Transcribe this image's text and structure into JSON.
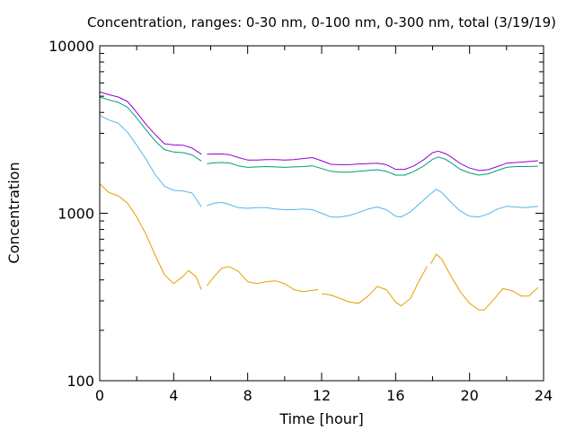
{
  "chart_data": {
    "type": "line",
    "title": "Concentration, ranges: 0-30 nm, 0-100 nm, 0-300 nm, total (3/19/19)",
    "xlabel": "Time [hour]",
    "ylabel": "Concentration",
    "xlim": [
      0,
      24
    ],
    "ylim": [
      100,
      10000
    ],
    "yscale": "log",
    "grid": false,
    "legend": "none",
    "x_ticks": [
      0,
      4,
      8,
      12,
      16,
      20,
      24
    ],
    "x_tick_labels": [
      "0",
      "4",
      "8",
      "12",
      "16",
      "20",
      "24"
    ],
    "y_ticks": [
      100,
      1000,
      10000
    ],
    "y_tick_labels": [
      "100",
      "1000",
      "10000"
    ],
    "series": [
      {
        "color": "#e69f00",
        "segments": [
          [
            [
              0,
              1500
            ],
            [
              0.5,
              1330
            ],
            [
              1,
              1270
            ],
            [
              1.5,
              1150
            ],
            [
              2,
              950
            ],
            [
              2.5,
              750
            ],
            [
              3,
              560
            ],
            [
              3.5,
              430
            ],
            [
              4,
              380
            ],
            [
              4.5,
              420
            ],
            [
              4.8,
              455
            ],
            [
              5.2,
              420
            ],
            [
              5.5,
              350
            ]
          ],
          [
            [
              5.8,
              370
            ],
            [
              6.2,
              420
            ],
            [
              6.6,
              470
            ],
            [
              7,
              480
            ],
            [
              7.5,
              450
            ],
            [
              8,
              390
            ],
            [
              8.5,
              380
            ],
            [
              9,
              390
            ],
            [
              9.5,
              395
            ],
            [
              10,
              380
            ],
            [
              10.5,
              350
            ],
            [
              11,
              340
            ],
            [
              11.8,
              350
            ]
          ],
          [
            [
              12,
              330
            ],
            [
              12.5,
              325
            ],
            [
              13,
              310
            ],
            [
              13.5,
              295
            ],
            [
              14,
              290
            ],
            [
              14.5,
              320
            ],
            [
              15,
              365
            ],
            [
              15.5,
              350
            ],
            [
              16,
              295
            ],
            [
              16.3,
              280
            ],
            [
              16.8,
              310
            ],
            [
              17.3,
              400
            ],
            [
              17.7,
              480
            ]
          ],
          [
            [
              17.9,
              500
            ],
            [
              18.2,
              570
            ],
            [
              18.5,
              530
            ],
            [
              19,
              420
            ],
            [
              19.5,
              340
            ],
            [
              20,
              290
            ],
            [
              20.5,
              265
            ],
            [
              20.8,
              265
            ],
            [
              21.3,
              305
            ],
            [
              21.8,
              355
            ],
            [
              22.3,
              345
            ],
            [
              22.8,
              320
            ],
            [
              23.2,
              320
            ],
            [
              23.7,
              360
            ]
          ]
        ]
      },
      {
        "color": "#56b4e9",
        "segments": [
          [
            [
              0,
              3850
            ],
            [
              0.5,
              3600
            ],
            [
              1,
              3450
            ],
            [
              1.5,
              3050
            ],
            [
              2,
              2550
            ],
            [
              2.5,
              2100
            ],
            [
              3,
              1700
            ],
            [
              3.5,
              1450
            ],
            [
              4,
              1370
            ],
            [
              4.5,
              1360
            ],
            [
              5,
              1320
            ],
            [
              5.5,
              1090
            ]
          ],
          [
            [
              5.8,
              1110
            ],
            [
              6.2,
              1150
            ],
            [
              6.6,
              1160
            ],
            [
              7,
              1130
            ],
            [
              7.5,
              1080
            ],
            [
              8,
              1070
            ],
            [
              8.5,
              1080
            ],
            [
              9,
              1080
            ],
            [
              9.5,
              1060
            ],
            [
              10,
              1050
            ],
            [
              10.5,
              1050
            ],
            [
              11,
              1060
            ],
            [
              11.5,
              1050
            ],
            [
              12,
              1000
            ],
            [
              12.5,
              950
            ],
            [
              13,
              950
            ],
            [
              13.5,
              970
            ],
            [
              14,
              1010
            ],
            [
              14.5,
              1060
            ],
            [
              15,
              1090
            ],
            [
              15.5,
              1050
            ],
            [
              16,
              960
            ],
            [
              16.3,
              950
            ],
            [
              16.8,
              1020
            ],
            [
              17.3,
              1140
            ],
            [
              17.8,
              1280
            ],
            [
              18.2,
              1390
            ],
            [
              18.5,
              1330
            ],
            [
              19,
              1160
            ],
            [
              19.5,
              1030
            ],
            [
              20,
              960
            ],
            [
              20.5,
              950
            ],
            [
              21,
              990
            ],
            [
              21.5,
              1060
            ],
            [
              22,
              1100
            ],
            [
              22.5,
              1090
            ],
            [
              23,
              1080
            ],
            [
              23.7,
              1100
            ]
          ]
        ]
      },
      {
        "color": "#009e73",
        "segments": [
          [
            [
              0,
              4950
            ],
            [
              0.5,
              4750
            ],
            [
              1,
              4600
            ],
            [
              1.5,
              4300
            ],
            [
              2,
              3700
            ],
            [
              2.5,
              3150
            ],
            [
              3,
              2700
            ],
            [
              3.5,
              2400
            ],
            [
              4,
              2320
            ],
            [
              4.5,
              2300
            ],
            [
              5,
              2230
            ],
            [
              5.5,
              2050
            ]
          ],
          [
            [
              5.8,
              1980
            ],
            [
              6.2,
              2000
            ],
            [
              6.6,
              2010
            ],
            [
              7,
              2000
            ],
            [
              7.5,
              1920
            ],
            [
              8,
              1880
            ],
            [
              8.5,
              1890
            ],
            [
              9,
              1900
            ],
            [
              9.5,
              1890
            ],
            [
              10,
              1880
            ],
            [
              10.5,
              1890
            ],
            [
              11,
              1900
            ],
            [
              11.5,
              1920
            ],
            [
              12,
              1850
            ],
            [
              12.5,
              1780
            ],
            [
              13,
              1760
            ],
            [
              13.5,
              1760
            ],
            [
              14,
              1780
            ],
            [
              14.5,
              1800
            ],
            [
              15,
              1820
            ],
            [
              15.5,
              1780
            ],
            [
              16,
              1690
            ],
            [
              16.5,
              1690
            ],
            [
              17,
              1780
            ],
            [
              17.5,
              1910
            ],
            [
              18,
              2100
            ],
            [
              18.3,
              2170
            ],
            [
              18.7,
              2100
            ],
            [
              19,
              2000
            ],
            [
              19.5,
              1830
            ],
            [
              20,
              1740
            ],
            [
              20.5,
              1690
            ],
            [
              21,
              1720
            ],
            [
              21.5,
              1800
            ],
            [
              22,
              1880
            ],
            [
              22.5,
              1900
            ],
            [
              23,
              1900
            ],
            [
              23.7,
              1910
            ]
          ]
        ]
      },
      {
        "color": "#9400d3",
        "segments": [
          [
            [
              0,
              5300
            ],
            [
              0.5,
              5100
            ],
            [
              1,
              4950
            ],
            [
              1.5,
              4650
            ],
            [
              2,
              4000
            ],
            [
              2.5,
              3400
            ],
            [
              3,
              2950
            ],
            [
              3.5,
              2600
            ],
            [
              4,
              2560
            ],
            [
              4.5,
              2550
            ],
            [
              5,
              2450
            ],
            [
              5.5,
              2250
            ]
          ],
          [
            [
              5.8,
              2250
            ],
            [
              6.2,
              2260
            ],
            [
              6.6,
              2260
            ],
            [
              7,
              2240
            ],
            [
              7.5,
              2150
            ],
            [
              8,
              2080
            ],
            [
              8.5,
              2080
            ],
            [
              9,
              2090
            ],
            [
              9.5,
              2090
            ],
            [
              10,
              2080
            ],
            [
              10.5,
              2090
            ],
            [
              11,
              2120
            ],
            [
              11.5,
              2150
            ],
            [
              12,
              2060
            ],
            [
              12.5,
              1960
            ],
            [
              13,
              1950
            ],
            [
              13.5,
              1950
            ],
            [
              14,
              1970
            ],
            [
              14.5,
              1980
            ],
            [
              15,
              1990
            ],
            [
              15.5,
              1950
            ],
            [
              16,
              1830
            ],
            [
              16.5,
              1830
            ],
            [
              17,
              1920
            ],
            [
              17.5,
              2080
            ],
            [
              18,
              2300
            ],
            [
              18.3,
              2350
            ],
            [
              18.7,
              2270
            ],
            [
              19,
              2170
            ],
            [
              19.5,
              1980
            ],
            [
              20,
              1860
            ],
            [
              20.5,
              1800
            ],
            [
              21,
              1820
            ],
            [
              21.5,
              1900
            ],
            [
              22,
              1990
            ],
            [
              22.5,
              2010
            ],
            [
              23,
              2030
            ],
            [
              23.7,
              2060
            ]
          ]
        ]
      }
    ]
  }
}
